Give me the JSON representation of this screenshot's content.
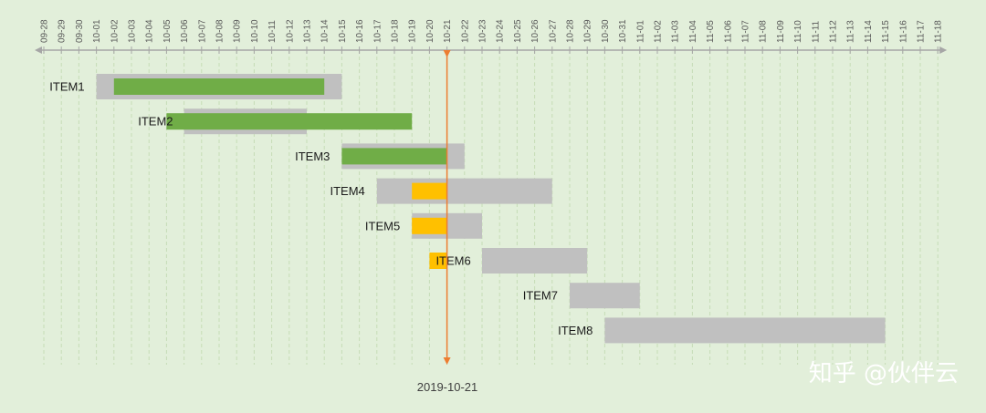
{
  "chart_data": {
    "type": "bar",
    "subtype": "gantt",
    "title": "",
    "xlabel": "",
    "ylabel": "",
    "x_tick_labels": [
      "09-28",
      "09-29",
      "09-30",
      "10-01",
      "10-02",
      "10-03",
      "10-04",
      "10-05",
      "10-06",
      "10-07",
      "10-08",
      "10-09",
      "10-10",
      "10-11",
      "10-12",
      "10-13",
      "10-14",
      "10-15",
      "10-16",
      "10-17",
      "10-18",
      "10-19",
      "10-20",
      "10-21",
      "10-22",
      "10-23",
      "10-24",
      "10-25",
      "10-26",
      "10-27",
      "10-28",
      "10-29",
      "10-30",
      "10-31",
      "11-01",
      "11-02",
      "11-03",
      "11-04",
      "11-05",
      "11-06",
      "11-07",
      "11-08",
      "11-09",
      "11-10",
      "11-11",
      "11-12",
      "11-13",
      "11-14",
      "11-15",
      "11-16",
      "11-17",
      "11-18"
    ],
    "xlim": [
      "2019-09-28",
      "2019-11-18"
    ],
    "grid": true,
    "legend": "none",
    "today": {
      "date": "2019-10-21",
      "label": "2019-10-21",
      "color": "#ed7d31"
    },
    "colors": {
      "background": "#e2efda",
      "planned": "#c0c0c0",
      "progress_done": "#70ad47",
      "progress_ongoing": "#ffc000",
      "axis": "#a6a6a6",
      "gridline": "#c6dcb6"
    },
    "tasks": [
      {
        "name": "ITEM1",
        "planned": [
          "2019-10-01",
          "2019-10-15"
        ],
        "actual": [
          "2019-10-02",
          "2019-10-14"
        ],
        "status": "done"
      },
      {
        "name": "ITEM2",
        "planned": [
          "2019-10-06",
          "2019-10-13"
        ],
        "actual": [
          "2019-10-05",
          "2019-10-19"
        ],
        "status": "done"
      },
      {
        "name": "ITEM3",
        "planned": [
          "2019-10-15",
          "2019-10-22"
        ],
        "actual": [
          "2019-10-15",
          "2019-10-21"
        ],
        "status": "done"
      },
      {
        "name": "ITEM4",
        "planned": [
          "2019-10-17",
          "2019-10-27"
        ],
        "actual": [
          "2019-10-19",
          "2019-10-21"
        ],
        "status": "in-progress"
      },
      {
        "name": "ITEM5",
        "planned": [
          "2019-10-19",
          "2019-10-23"
        ],
        "actual": [
          "2019-10-19",
          "2019-10-21"
        ],
        "status": "in-progress"
      },
      {
        "name": "ITEM6",
        "planned": [
          "2019-10-23",
          "2019-10-29"
        ],
        "actual": [
          "2019-10-20",
          "2019-10-21"
        ],
        "status": "in-progress"
      },
      {
        "name": "ITEM7",
        "planned": [
          "2019-10-28",
          "2019-11-01"
        ],
        "actual": null,
        "status": "not-started"
      },
      {
        "name": "ITEM8",
        "planned": [
          "2019-10-30",
          "2019-11-15"
        ],
        "actual": null,
        "status": "not-started"
      }
    ]
  },
  "watermark": "知乎 @伙伴云"
}
